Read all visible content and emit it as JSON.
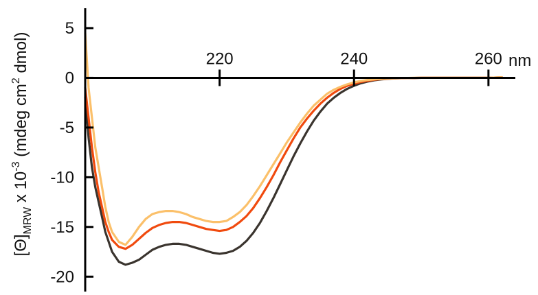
{
  "chart_data": {
    "type": "line",
    "xlabel": "nm",
    "ylabel": {
      "prefix": "[Θ]",
      "subscript": "MRW",
      "mid": " x 10",
      "exp": "-3",
      "units_open": " (mdeg cm",
      "units_exp": "2",
      "units_close": " dmol)"
    },
    "xlim": [
      200,
      264
    ],
    "ylim": [
      -21.5,
      7
    ],
    "x_ticks": [
      220,
      240,
      260
    ],
    "x_tick_labels": [
      "220",
      "240",
      "260"
    ],
    "y_ticks": [
      5,
      0,
      -5,
      -10,
      -15,
      -20
    ],
    "y_tick_labels": [
      "5",
      "0",
      "-5",
      "-10",
      "-15",
      "-20"
    ],
    "grid": false,
    "legend": "none",
    "series": [
      {
        "color": "#3a342e",
        "x": [
          200,
          200.5,
          201,
          201.5,
          202,
          202.5,
          203,
          203.5,
          204,
          205,
          206,
          207,
          208,
          209,
          210,
          211,
          212,
          213,
          214,
          215,
          216,
          217,
          218,
          219,
          220,
          221,
          222,
          223,
          224,
          225,
          226,
          227,
          228,
          229,
          230,
          231,
          232,
          233,
          234,
          235,
          236,
          237,
          238,
          239,
          240,
          241,
          242,
          243,
          244,
          245,
          246,
          247,
          248,
          249,
          250,
          252,
          254,
          256,
          258,
          260,
          262
        ],
        "y": [
          -2,
          -6,
          -9,
          -11,
          -12.5,
          -14,
          -15.5,
          -16.5,
          -17.5,
          -18.5,
          -18.8,
          -18.6,
          -18.3,
          -17.8,
          -17.3,
          -17.0,
          -16.8,
          -16.7,
          -16.7,
          -16.8,
          -17.0,
          -17.2,
          -17.4,
          -17.6,
          -17.7,
          -17.6,
          -17.4,
          -17.0,
          -16.4,
          -15.6,
          -14.6,
          -13.4,
          -12.1,
          -10.7,
          -9.3,
          -7.9,
          -6.6,
          -5.4,
          -4.3,
          -3.4,
          -2.6,
          -2.0,
          -1.5,
          -1.1,
          -0.8,
          -0.55,
          -0.38,
          -0.25,
          -0.16,
          -0.1,
          -0.06,
          -0.03,
          -0.02,
          -0.01,
          0,
          0,
          0,
          0,
          0,
          0,
          0.05
        ]
      },
      {
        "color": "#f04a0e",
        "x": [
          200,
          200.5,
          201,
          201.5,
          202,
          202.5,
          203,
          203.5,
          204,
          205,
          206,
          207,
          208,
          209,
          210,
          211,
          212,
          213,
          214,
          215,
          216,
          217,
          218,
          219,
          220,
          221,
          222,
          223,
          224,
          225,
          226,
          227,
          228,
          229,
          230,
          231,
          232,
          233,
          234,
          235,
          236,
          237,
          238,
          239,
          240,
          241,
          242,
          243,
          244,
          245,
          246,
          247,
          248,
          249,
          250,
          252,
          254,
          256,
          258,
          260,
          262
        ],
        "y": [
          -1,
          -4,
          -7,
          -9.5,
          -11.5,
          -13,
          -14.5,
          -15.5,
          -16.3,
          -17.0,
          -17.2,
          -16.8,
          -16.2,
          -15.6,
          -15.1,
          -14.8,
          -14.6,
          -14.5,
          -14.5,
          -14.6,
          -14.8,
          -15.0,
          -15.2,
          -15.3,
          -15.4,
          -15.3,
          -15.0,
          -14.5,
          -13.9,
          -13.1,
          -12.1,
          -11.0,
          -9.8,
          -8.5,
          -7.3,
          -6.1,
          -5.0,
          -4.1,
          -3.3,
          -2.6,
          -2.0,
          -1.5,
          -1.1,
          -0.8,
          -0.6,
          -0.42,
          -0.3,
          -0.2,
          -0.13,
          -0.08,
          -0.05,
          -0.03,
          -0.02,
          -0.01,
          0,
          0,
          0,
          0,
          0,
          0,
          0.05
        ]
      },
      {
        "color": "#fbc06a",
        "x": [
          200,
          200.5,
          201,
          201.5,
          202,
          202.5,
          203,
          203.5,
          204,
          205,
          206,
          207,
          208,
          209,
          210,
          211,
          212,
          213,
          214,
          215,
          216,
          217,
          218,
          219,
          220,
          221,
          222,
          223,
          224,
          225,
          226,
          227,
          228,
          229,
          230,
          231,
          232,
          233,
          234,
          235,
          236,
          237,
          238,
          239,
          240,
          241,
          242,
          243,
          244,
          245,
          246,
          247,
          248,
          249,
          250,
          252,
          254,
          256,
          258,
          260,
          262
        ],
        "y": [
          4.5,
          -1,
          -4,
          -7,
          -9,
          -11,
          -13,
          -14.5,
          -15.5,
          -16.5,
          -16.8,
          -16.0,
          -15.0,
          -14.2,
          -13.7,
          -13.5,
          -13.4,
          -13.4,
          -13.5,
          -13.7,
          -14.0,
          -14.2,
          -14.4,
          -14.5,
          -14.5,
          -14.4,
          -14.0,
          -13.5,
          -12.8,
          -11.9,
          -10.9,
          -9.8,
          -8.7,
          -7.6,
          -6.5,
          -5.5,
          -4.5,
          -3.6,
          -2.8,
          -2.2,
          -1.6,
          -1.2,
          -0.9,
          -0.65,
          -0.45,
          -0.32,
          -0.22,
          -0.15,
          -0.1,
          -0.06,
          -0.04,
          -0.02,
          -0.01,
          0,
          0,
          0,
          0,
          0,
          0,
          0,
          0.05
        ]
      }
    ]
  }
}
